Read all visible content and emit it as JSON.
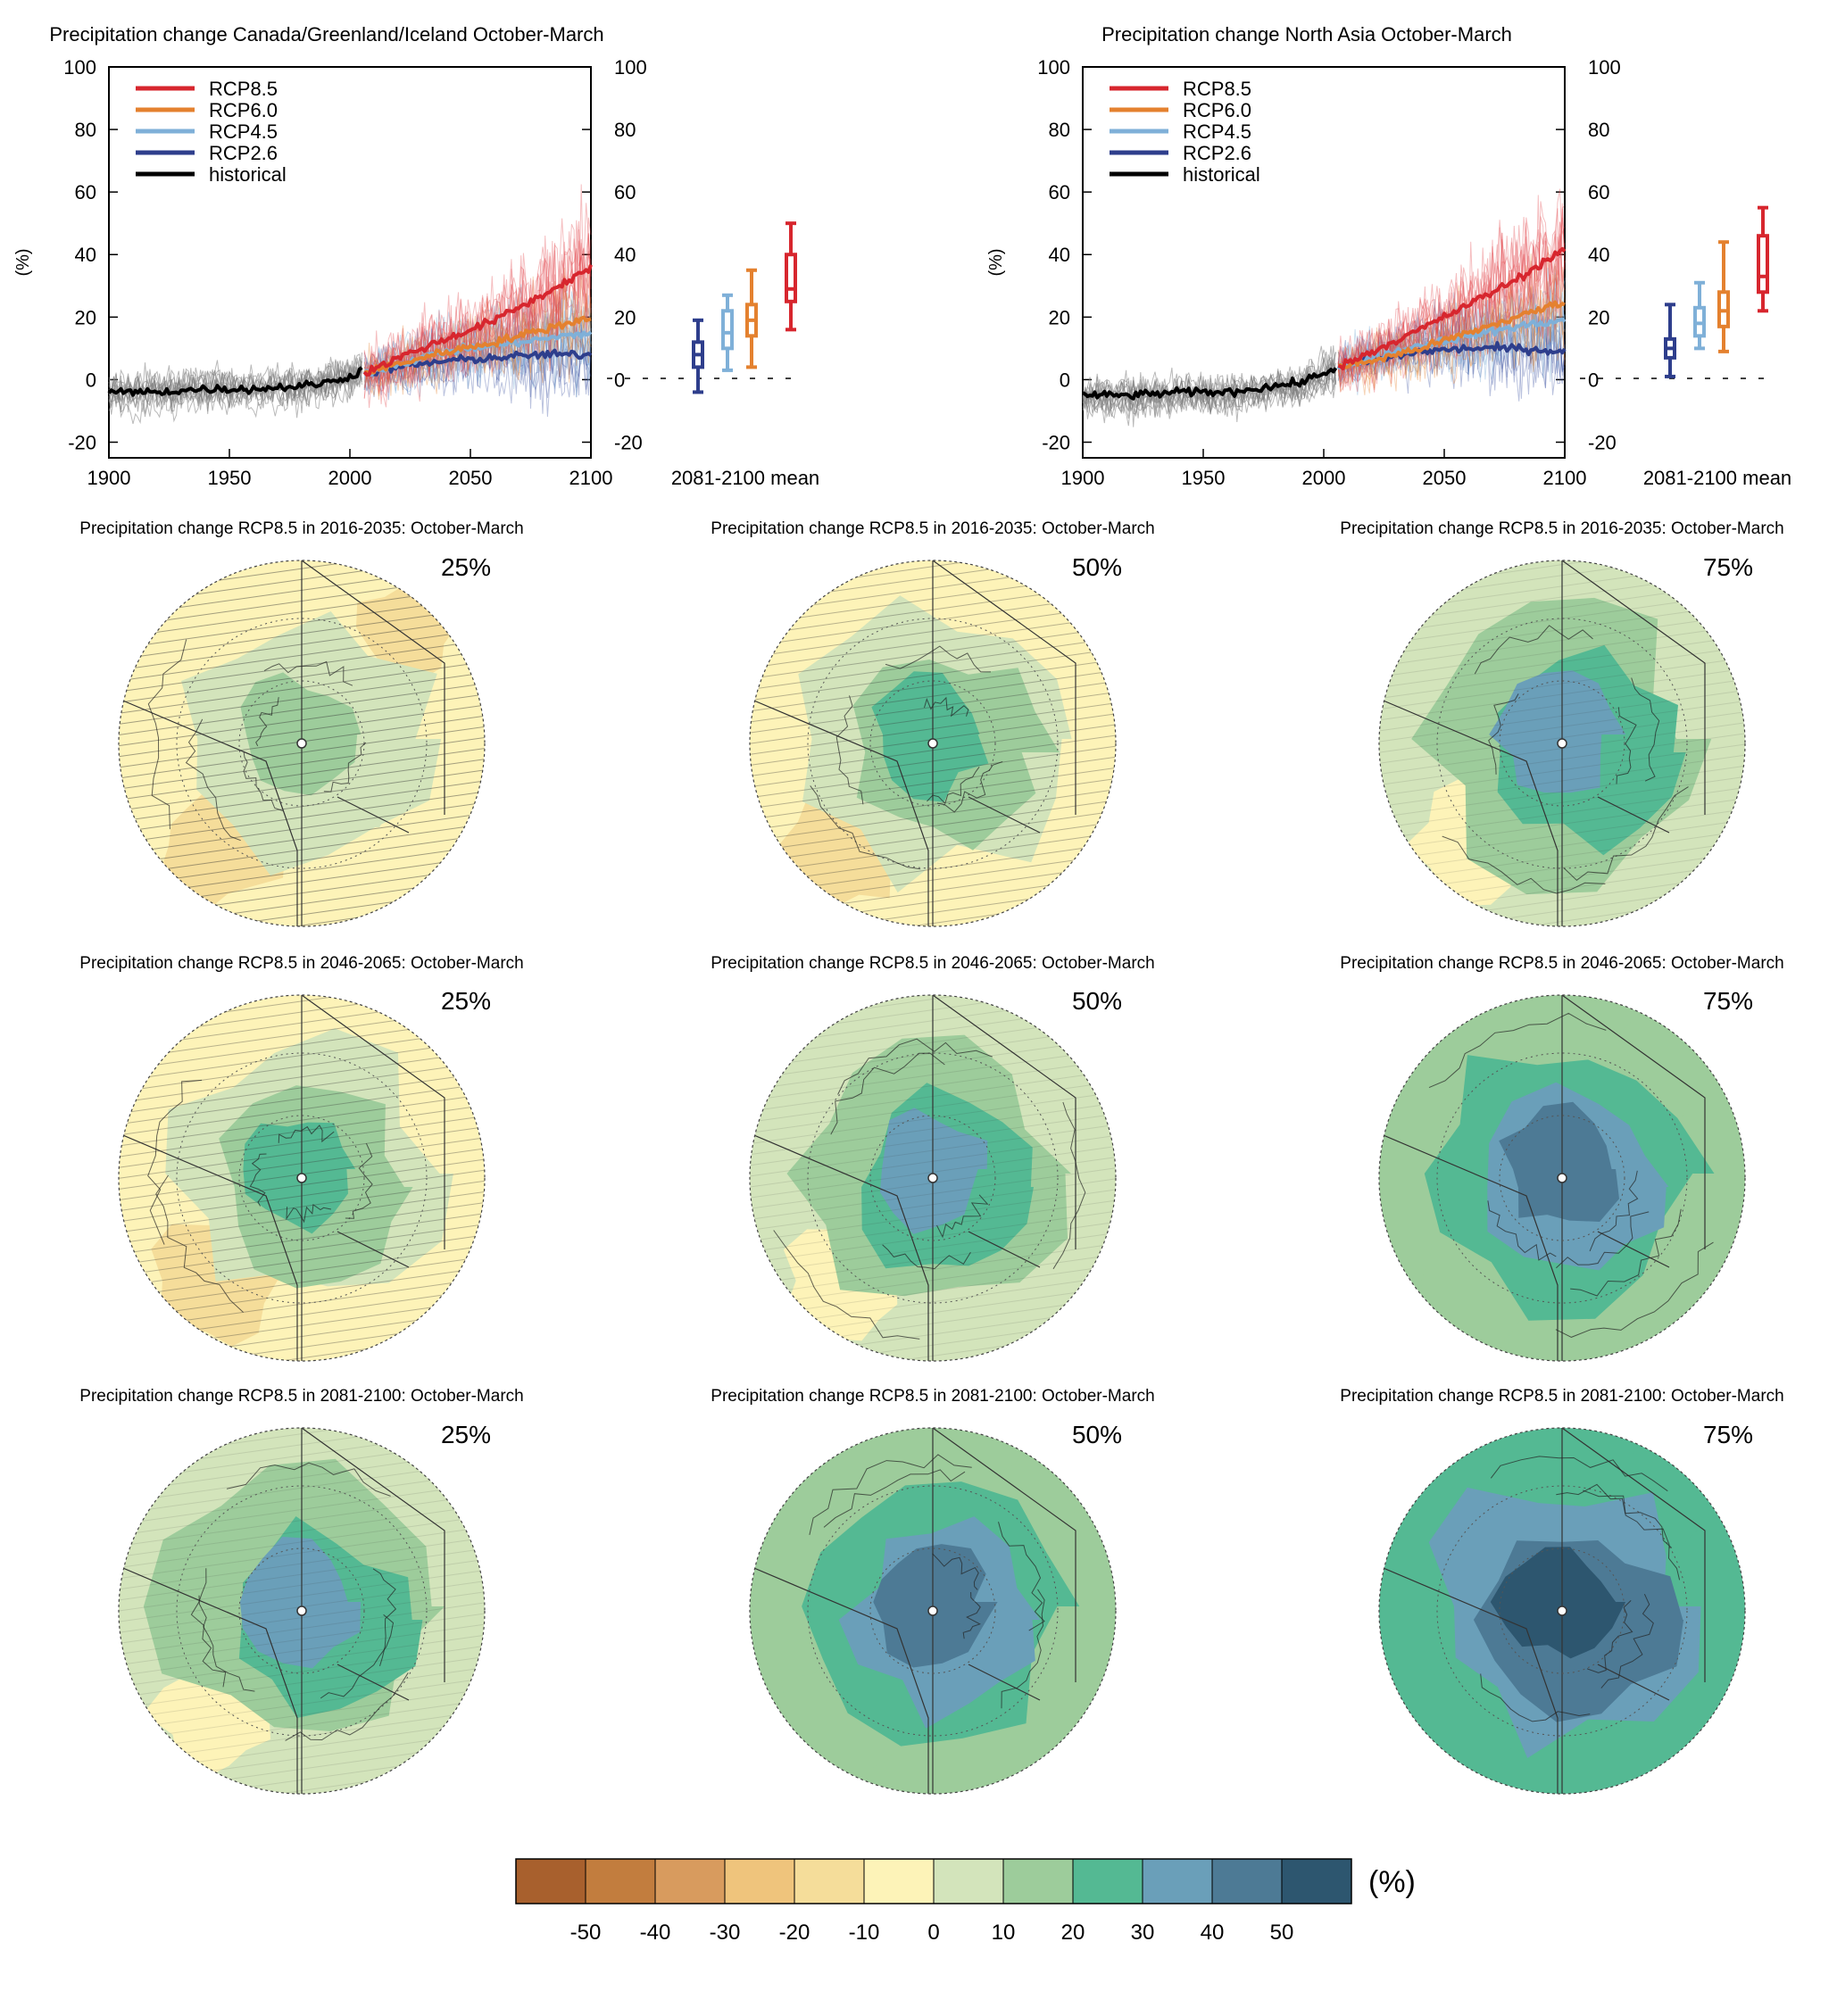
{
  "chart_data": [
    {
      "type": "line",
      "title": "Precipitation change Canada/Greenland/Iceland October-March",
      "ylabel": "(%)",
      "xlim": [
        1900,
        2100
      ],
      "ylim": [
        -25,
        100
      ],
      "x_ticks": [
        "1900",
        "1950",
        "2000",
        "2050",
        "2100"
      ],
      "y_ticks": [
        "-20",
        "0",
        "20",
        "40",
        "60",
        "80",
        "100"
      ],
      "legend_position": "top-left",
      "series": [
        {
          "name": "RCP8.5",
          "color": "#d7262e",
          "x": [
            2006,
            2020,
            2040,
            2060,
            2080,
            2100
          ],
          "values": [
            2,
            7,
            13,
            19,
            27,
            36
          ]
        },
        {
          "name": "RCP6.0",
          "color": "#e4812f",
          "x": [
            2006,
            2020,
            2040,
            2060,
            2080,
            2100
          ],
          "values": [
            2,
            5,
            9,
            12,
            16,
            20
          ]
        },
        {
          "name": "RCP4.5",
          "color": "#7fb0d8",
          "x": [
            2006,
            2020,
            2040,
            2060,
            2080,
            2100
          ],
          "values": [
            2,
            5,
            9,
            11,
            13,
            15
          ]
        },
        {
          "name": "RCP2.6",
          "color": "#2e3e8c",
          "x": [
            2006,
            2020,
            2040,
            2060,
            2080,
            2100
          ],
          "values": [
            2,
            4,
            6,
            7,
            8,
            8
          ]
        },
        {
          "name": "historical",
          "color": "#000000",
          "x": [
            1900,
            1920,
            1940,
            1960,
            1980,
            1990,
            2000,
            2005
          ],
          "values": [
            -4,
            -4,
            -3,
            -3,
            -2,
            -1,
            1,
            3
          ]
        }
      ],
      "boxplot": {
        "label": "2081-2100 mean",
        "boxes": [
          {
            "name": "RCP2.6",
            "min": -4,
            "q1": 4,
            "median": 8,
            "q3": 12,
            "max": 19
          },
          {
            "name": "RCP4.5",
            "min": 3,
            "q1": 10,
            "median": 15,
            "q3": 22,
            "max": 27
          },
          {
            "name": "RCP6.0",
            "min": 4,
            "q1": 14,
            "median": 19,
            "q3": 24,
            "max": 35
          },
          {
            "name": "RCP8.5",
            "min": 16,
            "q1": 25,
            "median": 29,
            "q3": 40,
            "max": 50
          }
        ]
      }
    },
    {
      "type": "line",
      "title": "Precipitation change North Asia October-March",
      "ylabel": "(%)",
      "xlim": [
        1900,
        2100
      ],
      "ylim": [
        -25,
        100
      ],
      "x_ticks": [
        "1900",
        "1950",
        "2000",
        "2050",
        "2100"
      ],
      "y_ticks": [
        "-20",
        "0",
        "20",
        "40",
        "60",
        "80",
        "100"
      ],
      "legend_position": "top-left",
      "series": [
        {
          "name": "RCP8.5",
          "color": "#d7262e",
          "x": [
            2006,
            2020,
            2040,
            2060,
            2080,
            2100
          ],
          "values": [
            4,
            9,
            16,
            24,
            32,
            42
          ]
        },
        {
          "name": "RCP6.0",
          "color": "#e4812f",
          "x": [
            2006,
            2020,
            2040,
            2060,
            2080,
            2100
          ],
          "values": [
            4,
            6,
            10,
            15,
            20,
            25
          ]
        },
        {
          "name": "RCP4.5",
          "color": "#7fb0d8",
          "x": [
            2006,
            2020,
            2040,
            2060,
            2080,
            2100
          ],
          "values": [
            4,
            7,
            11,
            14,
            17,
            19
          ]
        },
        {
          "name": "RCP2.6",
          "color": "#2e3e8c",
          "x": [
            2006,
            2020,
            2040,
            2060,
            2080,
            2100
          ],
          "values": [
            4,
            6,
            9,
            10,
            10,
            9
          ]
        },
        {
          "name": "historical",
          "color": "#000000",
          "x": [
            1900,
            1920,
            1940,
            1960,
            1980,
            1990,
            2000,
            2005
          ],
          "values": [
            -5,
            -5,
            -4,
            -4,
            -2,
            -1,
            2,
            4
          ]
        }
      ],
      "boxplot": {
        "label": "2081-2100 mean",
        "boxes": [
          {
            "name": "RCP2.6",
            "min": 1,
            "q1": 7,
            "median": 10,
            "q3": 13,
            "max": 24
          },
          {
            "name": "RCP4.5",
            "min": 10,
            "q1": 14,
            "median": 18,
            "q3": 23,
            "max": 31
          },
          {
            "name": "RCP6.0",
            "min": 9,
            "q1": 17,
            "median": 22,
            "q3": 28,
            "max": 44
          },
          {
            "name": "RCP8.5",
            "min": 22,
            "q1": 28,
            "median": 33,
            "q3": 46,
            "max": 55
          }
        ]
      }
    },
    {
      "type": "heatmap",
      "panels": [
        {
          "title": "Precipitation change RCP8.5 in 2016-2035: October-March",
          "percentile": "25%",
          "mean_level": 0.5
        },
        {
          "title": "Precipitation change RCP8.5 in 2016-2035: October-March",
          "percentile": "50%",
          "mean_level": 1.0
        },
        {
          "title": "Precipitation change RCP8.5 in 2016-2035: October-March",
          "percentile": "75%",
          "mean_level": 2.0
        },
        {
          "title": "Precipitation change RCP8.5 in 2046-2065: October-March",
          "percentile": "25%",
          "mean_level": 1.0
        },
        {
          "title": "Precipitation change RCP8.5 in 2046-2065: October-March",
          "percentile": "50%",
          "mean_level": 2.0
        },
        {
          "title": "Precipitation change RCP8.5 in 2046-2065: October-March",
          "percentile": "75%",
          "mean_level": 3.2
        },
        {
          "title": "Precipitation change RCP8.5 in 2081-2100: October-March",
          "percentile": "25%",
          "mean_level": 2.0
        },
        {
          "title": "Precipitation change RCP8.5 in 2081-2100: October-March",
          "percentile": "50%",
          "mean_level": 3.2
        },
        {
          "title": "Precipitation change RCP8.5 in 2081-2100: October-March",
          "percentile": "75%",
          "mean_level": 4.2
        }
      ],
      "colorbar": {
        "unit": "(%)",
        "tick_labels": [
          "-50",
          "-40",
          "-30",
          "-20",
          "-10",
          "0",
          "10",
          "20",
          "30",
          "40",
          "50"
        ],
        "colors": [
          "#a8602d",
          "#c27d3e",
          "#d89b5e",
          "#efc47c",
          "#f5dd9a",
          "#fdf3b8",
          "#d3e4bb",
          "#9dcc9b",
          "#54b993",
          "#6a9fb9",
          "#4d7a95",
          "#2d566f"
        ]
      }
    }
  ]
}
